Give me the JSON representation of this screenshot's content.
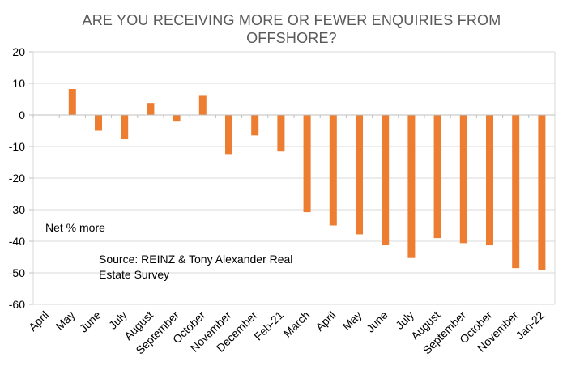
{
  "chart_data": {
    "type": "bar",
    "title_line1": "ARE YOU RECEIVING MORE OR FEWER ENQUIRIES FROM",
    "title_line2": "OFFSHORE?",
    "series_label": "Net % more",
    "source_line1": "Source: REINZ & Tony Alexander Real",
    "source_line2": "Estate Survey",
    "categories": [
      "April",
      "May",
      "June",
      "July",
      "August",
      "September",
      "October",
      "November",
      "December",
      "Feb-21",
      "March",
      "April",
      "May",
      "June",
      "July",
      "August",
      "September",
      "October",
      "November",
      "Jan-22"
    ],
    "values": [
      0,
      8.2,
      -5.0,
      -7.7,
      3.8,
      -2.1,
      6.3,
      -12.4,
      -6.5,
      -11.6,
      -30.8,
      -35.0,
      -37.8,
      -41.2,
      -45.3,
      -39.0,
      -40.6,
      -41.3,
      -48.5,
      -49.2
    ],
    "ylim": [
      -60,
      20
    ],
    "yticks": [
      20,
      10,
      0,
      -10,
      -20,
      -30,
      -40,
      -50,
      -60
    ],
    "grid": true,
    "bar_color": "#ED7D31"
  }
}
